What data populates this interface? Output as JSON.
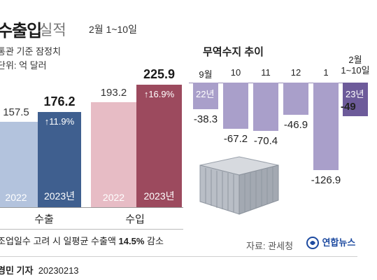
{
  "title": {
    "main": "수출입",
    "sub": "실적"
  },
  "period": "2월 1~10일",
  "basis": [
    "통관 기준 잠정치",
    "단위: 억 달러"
  ],
  "colors": {
    "export_2022": "#b3c3dd",
    "export_2023": "#3f5f8f",
    "import_2022": "#e7bcc5",
    "import_2023": "#9c4a5e",
    "trade_balance": "#a99fca",
    "trade_balance_current": "#6d5b9a"
  },
  "chart_data": [
    {
      "type": "bar",
      "categories": [
        "수출",
        "수입"
      ],
      "series": [
        {
          "name": "2022",
          "values": [
            157.5,
            193.2
          ]
        },
        {
          "name": "2023년",
          "values": [
            176.2,
            225.9
          ]
        }
      ],
      "growth_labels": [
        "↑11.9%",
        "↑16.9%"
      ],
      "year_labels": {
        "export": [
          "2022",
          "2023년"
        ],
        "import": [
          "2022",
          "2023년"
        ]
      }
    },
    {
      "type": "bar",
      "title": "무역수지 추이",
      "categories": [
        "9월",
        "10",
        "11",
        "12",
        "1",
        "2월 1~10일"
      ],
      "values": [
        -38.3,
        -67.2,
        -70.4,
        -46.9,
        -126.9,
        -49
      ],
      "value_labels": [
        "-38.3",
        "-67.2",
        "-70.4",
        "-46.9",
        "-126.9",
        "-49"
      ],
      "first_bar_year": "22년",
      "last_bar_year": "23년",
      "last_category_lines": [
        "2월",
        "1~10일"
      ]
    }
  ],
  "footnote": {
    "pre": "조업일수 고려 시 일평균 수출액 ",
    "highlight": "14.5%",
    "post": " 감소"
  },
  "source": "자료: 관세청",
  "logo_text": "연합뉴스",
  "reporter": {
    "name": "경민 기자",
    "date": "20230213"
  }
}
